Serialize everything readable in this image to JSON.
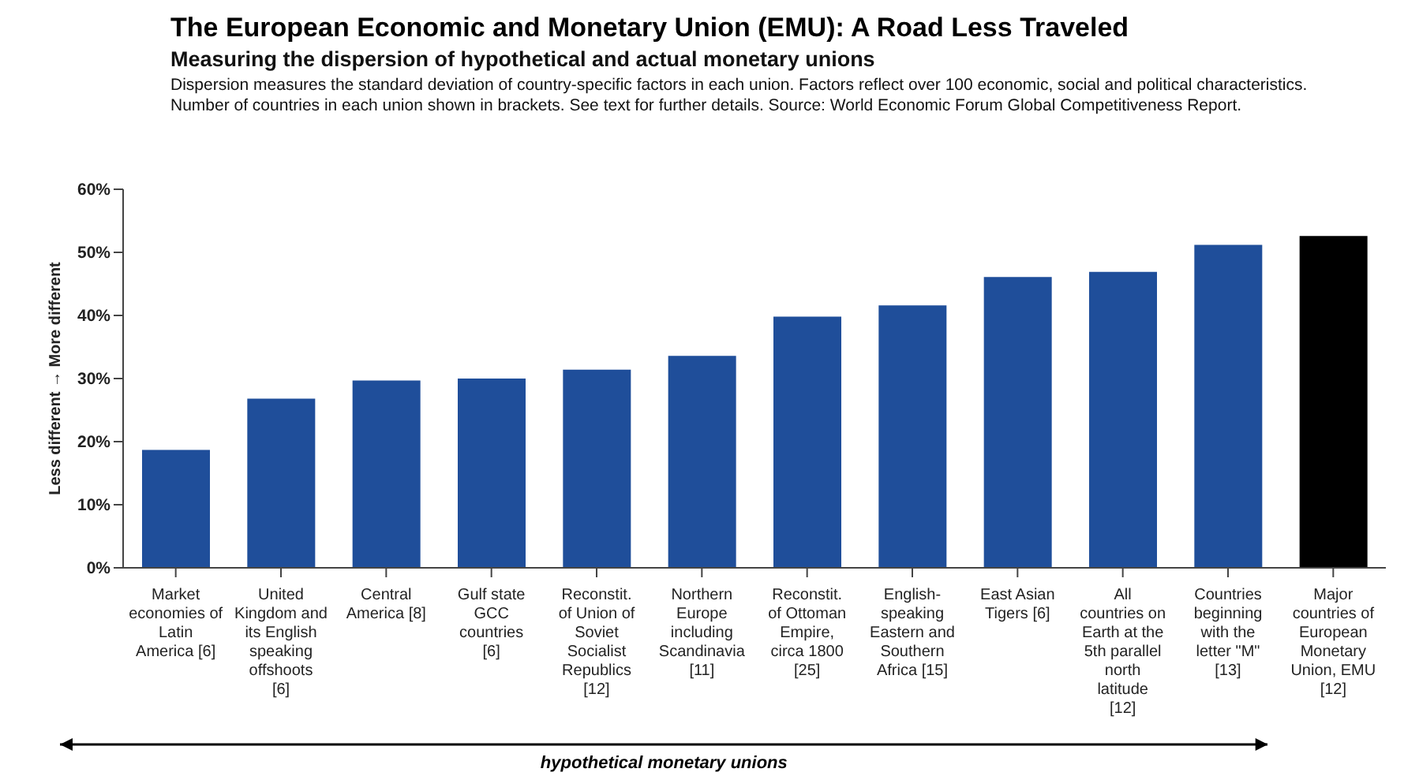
{
  "chart_data": {
    "type": "bar",
    "title": "The European Economic and Monetary Union (EMU): A Road Less Traveled",
    "subtitle": "Measuring the dispersion of hypothetical and actual monetary unions",
    "annotations": [
      "Dispersion measures the standard deviation of country-specific factors in each union.  Factors reflect over 100 economic, social and political characteristics.  Number of countries in each union shown in brackets.  See text for further details.  Source:  World Economic Forum Global Competitiveness Report.",
      "hypothetical monetary unions"
    ],
    "ylabel": "Less different → More different",
    "categories": [
      "Market economies of Latin America [6]",
      "United Kingdom and its English speaking offshoots [6]",
      "Central America [8]",
      "Gulf state GCC countries [6]",
      "Reconstit. of Union of Soviet Socialist Republics [12]",
      "Northern Europe including Scandinavia [11]",
      "Reconstit. of Ottoman Empire, circa 1800 [25]",
      "English-speaking Eastern and Southern Africa [15]",
      "East Asian Tigers [6]",
      "All countries on Earth at the 5th parallel north latitude [12]",
      "Countries beginning with the letter \"M\" [13]",
      "Major countries of European Monetary Union, EMU [12]"
    ],
    "values": [
      18.7,
      26.8,
      29.7,
      30,
      31.4,
      33.6,
      39.8,
      41.6,
      46.1,
      46.9,
      51.2,
      52.6
    ],
    "colors": [
      "#1f4e9a",
      "#1f4e9a",
      "#1f4e9a",
      "#1f4e9a",
      "#1f4e9a",
      "#1f4e9a",
      "#1f4e9a",
      "#1f4e9a",
      "#1f4e9a",
      "#1f4e9a",
      "#1f4e9a",
      "#000000"
    ],
    "ylim": [
      0,
      60
    ],
    "yticks": [
      {
        "value": 0,
        "label": "0%"
      },
      {
        "value": 10,
        "label": "10%"
      },
      {
        "value": 20,
        "label": "20%"
      },
      {
        "value": 30,
        "label": "30%"
      },
      {
        "value": 40,
        "label": "40%"
      },
      {
        "value": 50,
        "label": "50%"
      },
      {
        "value": 60,
        "label": "60%"
      }
    ],
    "grid": false,
    "legend": false
  }
}
